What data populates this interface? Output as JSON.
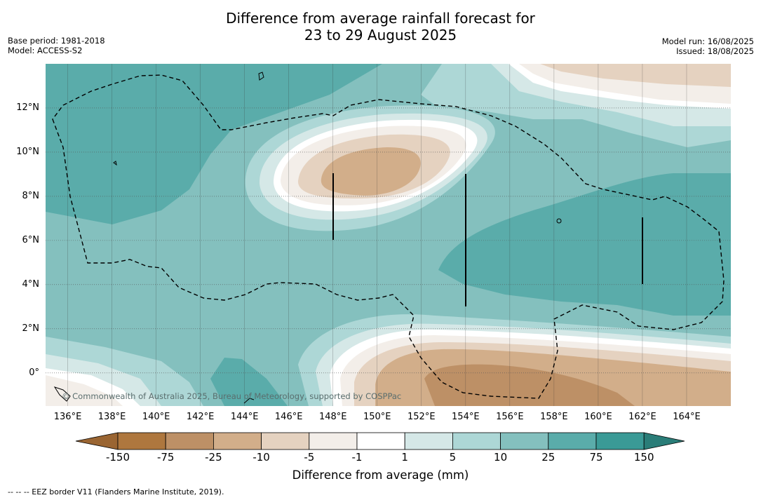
{
  "title_line1": "Difference from average rainfall forecast for",
  "title_line2": "23 to 29 August 2025",
  "base_period": "Base period: 1981-2018",
  "model": "Model: ACCESS-S2",
  "model_run": "Model run: 16/08/2025",
  "issued": "Issued: 18/08/2025",
  "copyright": "© Commonwealth of Australia 2025, Bureau of Meteorology, supported by COSPPac",
  "map": {
    "lon_range": [
      135,
      166
    ],
    "lat_range": [
      -1.5,
      14
    ],
    "lat_ticks": [
      "12°N",
      "10°N",
      "8°N",
      "6°N",
      "4°N",
      "2°N",
      "0°"
    ],
    "lon_ticks": [
      "136°E",
      "138°E",
      "140°E",
      "142°E",
      "144°E",
      "146°E",
      "148°E",
      "150°E",
      "152°E",
      "154°E",
      "156°E",
      "158°E",
      "160°E",
      "162°E",
      "164°E"
    ],
    "gridlines": true,
    "eez_border": "dashed"
  },
  "colorbar": {
    "title": "Difference from average (mm)",
    "labels": [
      "-150",
      "-75",
      "-25",
      "-10",
      "-5",
      "-1",
      "1",
      "5",
      "10",
      "25",
      "75",
      "150"
    ],
    "colors": [
      "#9a6532",
      "#ae773e",
      "#bd9066",
      "#d2ae8a",
      "#e5d2c0",
      "#f3eee9",
      "#ffffff",
      "#d5e8e7",
      "#add7d6",
      "#84c0be",
      "#5aacaa",
      "#3a9a96",
      "#2a7d78"
    ]
  },
  "footnote": "--  --  -- EEZ border V11 (Flanders Marine Institute, 2019)."
}
